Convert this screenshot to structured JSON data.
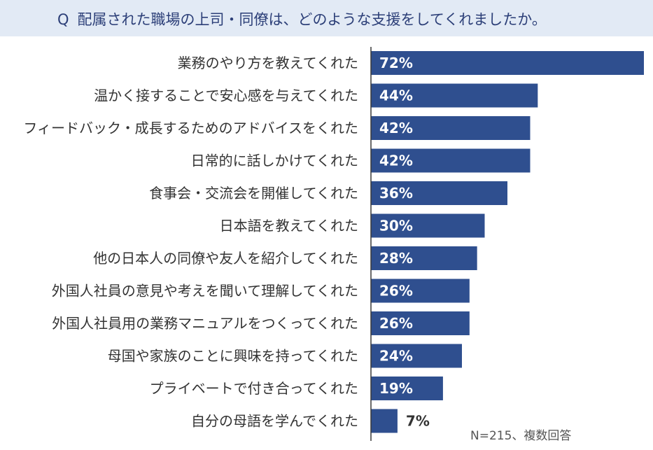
{
  "header": {
    "q_mark": "Q",
    "question": "配属された職場の上司・同僚は、どのような支援をしてくれましたか。"
  },
  "note": "N=215、複数回答",
  "colors": {
    "bar": "#2f4f8f",
    "axis": "#3a3a3a",
    "header_bg": "#e2eaf5",
    "header_text": "#2c3f78"
  },
  "chart_data": {
    "type": "bar",
    "orientation": "horizontal",
    "title": "",
    "xlabel": "",
    "ylabel": "",
    "xlim": [
      0,
      72
    ],
    "grid": false,
    "categories": [
      "業務のやり方を教えてくれた",
      "温かく接することで安心感を与えてくれた",
      "フィードバック・成長するためのアドバイスをくれた",
      "日常的に話しかけてくれた",
      "食事会・交流会を開催してくれた",
      "日本語を教えてくれた",
      "他の日本人の同僚や友人を紹介してくれた",
      "外国人社員の意見や考えを聞いて理解してくれた",
      "外国人社員用の業務マニュアルをつくってくれた",
      "母国や家族のことに興味を持ってくれた",
      "プライベートで付き合ってくれた",
      "自分の母語を学んでくれた"
    ],
    "values": [
      72,
      44,
      42,
      42,
      36,
      30,
      28,
      26,
      26,
      24,
      19,
      7
    ],
    "value_labels": [
      "72%",
      "44%",
      "42%",
      "42%",
      "36%",
      "30%",
      "28%",
      "26%",
      "26%",
      "24%",
      "19%",
      "7%"
    ]
  }
}
